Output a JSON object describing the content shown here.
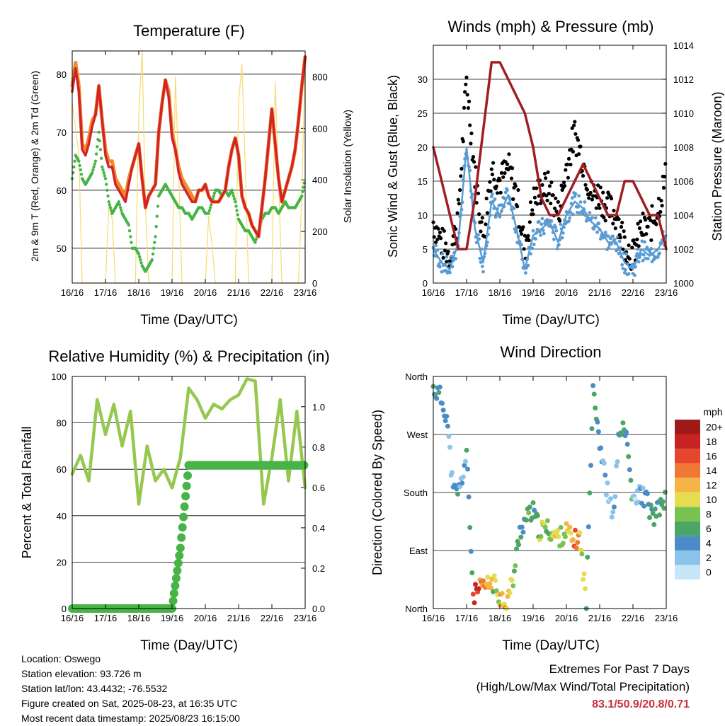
{
  "colors": {
    "temp_2m": "#d2232a",
    "temp_9m": "#f08c28",
    "dewpoint": "#46b446",
    "solar": "#f5dc6e",
    "wind": "#5a9bd2",
    "gust": "#000000",
    "pressure": "#a01e23",
    "rh": "#96c850",
    "precip": "#46b446",
    "extremes": "#c8323c"
  },
  "time_ticks": [
    "16/16",
    "17/16",
    "18/16",
    "19/16",
    "20/16",
    "21/16",
    "22/16",
    "23/16"
  ],
  "xlabel": "Time (Day/UTC)",
  "panels": {
    "temperature": {
      "title": "Temperature (F)",
      "ylabel_left": "2m & 9m T (Red, Orange) & 2m Td (Green)",
      "ylabel_right": "Solar Insolation (Yellow)",
      "yticks_left": [
        "50",
        "60",
        "70",
        "80"
      ],
      "yticks_right": [
        "0",
        "200",
        "400",
        "600",
        "800"
      ]
    },
    "winds": {
      "title": "Winds (mph) & Pressure (mb)",
      "ylabel_left": "Sonic Wind & Gust (Blue, Black)",
      "ylabel_right": "Station Pressure (Maroon)",
      "yticks_left": [
        "0",
        "5",
        "10",
        "15",
        "20",
        "25",
        "30"
      ],
      "yticks_right": [
        "1000",
        "1002",
        "1004",
        "1006",
        "1008",
        "1010",
        "1012",
        "1014"
      ]
    },
    "humidity": {
      "title": "Relative Humidity (%) & Precipitation (in)",
      "ylabel_left": "Percent & Total Rainfall",
      "yticks_left": [
        "0",
        "20",
        "40",
        "60",
        "80",
        "100"
      ],
      "yticks_right": [
        "0.0",
        "0.2",
        "0.4",
        "0.6",
        "0.8",
        "1.0"
      ]
    },
    "direction": {
      "title": "Wind Direction",
      "ylabel_left": "Direction (Colored By Speed)",
      "yticks_left": [
        "North",
        "East",
        "South",
        "West",
        "North"
      ],
      "legend_title": "mph",
      "legend_labels": [
        "0",
        "2",
        "4",
        "6",
        "8",
        "10",
        "12",
        "14",
        "16",
        "18",
        "20+"
      ],
      "legend_colors": [
        "#c8e6fa",
        "#8cc3eb",
        "#4b8cc8",
        "#4ba564",
        "#78c350",
        "#e6dc50",
        "#f5b446",
        "#f07832",
        "#e6462d",
        "#c82323",
        "#a01919"
      ]
    }
  },
  "chart_data": [
    {
      "type": "line",
      "title": "Temperature (F)",
      "xlabel": "Time (Day/UTC)",
      "ylabel": "2m & 9m T (Red, Orange) & 2m Td (Green)",
      "y2label": "Solar Insolation (Yellow)",
      "ylim": [
        44,
        84
      ],
      "y2lim": [
        0,
        900
      ],
      "x_days": [
        0,
        0.1,
        0.2,
        0.3,
        0.4,
        0.5,
        0.6,
        0.7,
        0.8,
        0.9,
        1.0,
        1.1,
        1.2,
        1.3,
        1.4,
        1.5,
        1.6,
        1.7,
        1.8,
        1.9,
        2.0,
        2.1,
        2.2,
        2.3,
        2.4,
        2.5,
        2.6,
        2.7,
        2.8,
        2.9,
        3.0,
        3.1,
        3.2,
        3.3,
        3.4,
        3.5,
        3.6,
        3.7,
        3.8,
        3.9,
        4.0,
        4.1,
        4.2,
        4.3,
        4.4,
        4.5,
        4.6,
        4.7,
        4.8,
        4.9,
        5.0,
        5.1,
        5.2,
        5.3,
        5.4,
        5.5,
        5.6,
        5.7,
        5.8,
        5.9,
        6.0,
        6.1,
        6.2,
        6.3,
        6.4,
        6.5,
        6.6,
        6.7,
        6.8,
        6.9,
        7.0
      ],
      "series": [
        {
          "name": "2m T",
          "values": [
            77,
            81,
            77,
            67,
            66,
            68,
            71,
            73,
            78,
            72,
            66,
            64,
            64,
            61,
            60,
            59,
            58,
            61,
            64,
            66,
            68,
            62,
            57,
            59,
            60,
            61,
            70,
            75,
            79,
            76,
            69,
            67,
            63,
            61,
            60,
            59,
            58,
            58,
            60,
            60,
            61,
            59,
            58,
            58,
            58,
            59,
            60,
            64,
            67,
            69,
            66,
            59,
            57,
            56,
            54,
            53,
            52,
            57,
            62,
            68,
            74,
            68,
            62,
            58,
            60,
            62,
            64,
            67,
            72,
            78,
            83
          ]
        },
        {
          "name": "9m T",
          "values": [
            78,
            82,
            78,
            68,
            67,
            69,
            72,
            73,
            78,
            72,
            67,
            65,
            65,
            62,
            61,
            60,
            59,
            62,
            64,
            66,
            68,
            62,
            57,
            59,
            60,
            61,
            70,
            75,
            79,
            77,
            70,
            67,
            64,
            62,
            61,
            60,
            59,
            58,
            60,
            60,
            61,
            59,
            58,
            58,
            58,
            59,
            60,
            64,
            67,
            69,
            66,
            59,
            57,
            56,
            54,
            53,
            52,
            57,
            62,
            68,
            74,
            68,
            62,
            58,
            60,
            62,
            64,
            67,
            72,
            78,
            83
          ]
        },
        {
          "name": "2m Td",
          "values": [
            62,
            66,
            65,
            62,
            61,
            62,
            63,
            65,
            70,
            64,
            62,
            58,
            56,
            57,
            58,
            56,
            55,
            54,
            50,
            50,
            49,
            47,
            46,
            47,
            48,
            52,
            59,
            60,
            61,
            60,
            59,
            58,
            57,
            57,
            56,
            56,
            55,
            56,
            57,
            57,
            56,
            56,
            58,
            60,
            60,
            59,
            60,
            59,
            60,
            58,
            55,
            54,
            53,
            53,
            52,
            51,
            53,
            55,
            56,
            56,
            57,
            57,
            56,
            57,
            58,
            57,
            57,
            57,
            58,
            59,
            62
          ]
        }
      ],
      "solar_x": [
        0,
        0.2,
        0.3,
        0.4,
        0.5,
        0.6,
        0.7,
        0.8,
        0.9,
        1.0,
        1.1,
        1.2,
        1.3,
        1.4,
        1.5,
        1.6,
        1.7,
        1.8,
        1.9,
        2.0,
        2.1,
        2.2,
        2.3,
        2.4,
        2.5,
        2.6,
        2.7,
        2.8,
        2.9,
        3.0,
        3.1,
        3.2,
        3.3,
        3.4,
        3.5,
        3.6,
        3.7,
        3.8,
        3.9,
        4.0,
        4.1,
        4.2,
        4.3,
        4.4,
        4.5,
        4.6,
        4.7,
        4.8,
        4.9,
        5.0,
        5.1,
        5.2,
        5.3,
        5.4,
        5.5,
        5.6,
        5.7,
        5.8,
        5.9,
        6.0,
        6.1,
        6.2,
        6.3,
        6.4,
        6.5,
        6.6,
        6.7,
        6.8,
        6.9,
        7.0
      ],
      "solar": [
        700,
        500,
        0,
        0,
        0,
        0,
        0,
        0,
        0,
        0,
        300,
        250,
        0,
        0,
        0,
        0,
        0,
        0,
        0,
        650,
        900,
        300,
        0,
        0,
        0,
        0,
        0,
        0,
        0,
        0,
        800,
        420,
        0,
        0,
        0,
        0,
        0,
        0,
        0,
        0,
        260,
        150,
        0,
        0,
        0,
        0,
        0,
        0,
        0,
        700,
        850,
        450,
        0,
        0,
        0,
        0,
        0,
        0,
        0,
        0,
        780,
        400,
        0,
        0,
        0,
        0,
        0,
        0,
        350,
        880
      ]
    },
    {
      "type": "scatter",
      "title": "Winds (mph) & Pressure (mb)",
      "xlabel": "Time (Day/UTC)",
      "ylabel": "Sonic Wind & Gust (Blue, Black)",
      "y2label": "Station Pressure (Maroon)",
      "ylim": [
        0,
        35
      ],
      "y2lim": [
        1000,
        1014
      ],
      "x_days": [
        0,
        0.25,
        0.5,
        0.75,
        1.0,
        1.25,
        1.5,
        1.75,
        2.0,
        2.25,
        2.5,
        2.75,
        3.0,
        3.25,
        3.5,
        3.75,
        4.0,
        4.25,
        4.5,
        4.75,
        5.0,
        5.25,
        5.5,
        5.75,
        6.0,
        6.25,
        6.5,
        6.75,
        7.0
      ],
      "series": [
        {
          "name": "Sonic Wind",
          "values": [
            5,
            3,
            2,
            6,
            20,
            8,
            3,
            12,
            10,
            13,
            8,
            2,
            7,
            8,
            9,
            6,
            10,
            12,
            11,
            9,
            8,
            6,
            6,
            3,
            2,
            5,
            4,
            5,
            7
          ]
        },
        {
          "name": "Gust",
          "values": [
            9,
            6,
            4,
            10,
            30,
            16,
            7,
            17,
            15,
            17,
            13,
            5,
            12,
            14,
            14,
            10,
            17,
            22,
            18,
            13,
            13,
            11,
            10,
            6,
            4,
            8,
            8,
            11,
            16
          ]
        },
        {
          "name": "Station Pressure",
          "values": [
            1008,
            1006,
            1004,
            1002,
            1002,
            1005,
            1009,
            1013,
            1013,
            1012,
            1011,
            1010,
            1008,
            1005,
            1004,
            1004,
            1005,
            1006,
            1007,
            1006,
            1005,
            1004,
            1004,
            1006,
            1006,
            1005,
            1004,
            1004,
            1002
          ]
        }
      ]
    },
    {
      "type": "line",
      "title": "Relative Humidity (%) & Precipitation (in)",
      "xlabel": "Time (Day/UTC)",
      "ylabel": "Percent & Total Rainfall",
      "ylim": [
        0,
        100
      ],
      "y2lim": [
        0,
        1.15
      ],
      "x_days": [
        0,
        0.25,
        0.5,
        0.75,
        1.0,
        1.25,
        1.5,
        1.75,
        2.0,
        2.25,
        2.5,
        2.75,
        3.0,
        3.25,
        3.5,
        3.75,
        4.0,
        4.25,
        4.5,
        4.75,
        5.0,
        5.25,
        5.5,
        5.75,
        6.0,
        6.25,
        6.5,
        6.75,
        7.0
      ],
      "series": [
        {
          "name": "Relative Humidity",
          "values": [
            58,
            66,
            55,
            90,
            75,
            88,
            70,
            85,
            45,
            70,
            55,
            60,
            52,
            65,
            95,
            90,
            82,
            88,
            86,
            90,
            92,
            99,
            98,
            45,
            65,
            90,
            55,
            85,
            52
          ]
        },
        {
          "name": "Total Rainfall",
          "values": [
            0,
            0,
            0,
            0,
            0,
            0,
            0,
            0,
            0,
            0,
            0,
            0,
            0,
            0.3,
            0.71,
            0.71,
            0.71,
            0.71,
            0.71,
            0.71,
            0.71,
            0.71,
            0.71,
            0.71,
            0.71,
            0.71,
            0.71,
            0.71,
            0.71
          ]
        }
      ]
    },
    {
      "type": "scatter",
      "title": "Wind Direction",
      "xlabel": "Time (Day/UTC)",
      "ylabel": "Direction (Colored By Speed)",
      "ylim": [
        0,
        360
      ],
      "x_days": [
        0,
        0.2,
        0.4,
        0.6,
        0.8,
        1.0,
        1.2,
        1.4,
        1.6,
        1.8,
        2.0,
        2.2,
        2.4,
        2.6,
        2.8,
        3.0,
        3.2,
        3.4,
        3.6,
        3.8,
        4.0,
        4.2,
        4.4,
        4.6,
        4.8,
        5.0,
        5.2,
        5.4,
        5.6,
        5.8,
        6.0,
        6.2,
        6.4,
        6.6,
        6.8,
        7.0
      ],
      "direction": [
        340,
        330,
        300,
        180,
        185,
        240,
        20,
        30,
        35,
        40,
        20,
        10,
        45,
        120,
        140,
        150,
        120,
        125,
        115,
        110,
        120,
        105,
        110,
        10,
        350,
        260,
        190,
        140,
        280,
        270,
        160,
        180,
        170,
        140,
        155,
        175
      ],
      "speed": [
        5,
        4,
        3,
        4,
        3,
        5,
        18,
        14,
        12,
        8,
        12,
        11,
        6,
        5,
        7,
        6,
        8,
        8,
        10,
        9,
        11,
        14,
        10,
        6,
        5,
        3,
        2,
        3,
        5,
        6,
        2,
        3,
        4,
        5,
        6,
        7
      ]
    }
  ],
  "info": {
    "location": "Location: Oswego",
    "elevation": "Station elevation: 93.726 m",
    "latlon": "Station lat/lon: 43.4432; -76.5532",
    "created": "Figure created on Sat, 2025-08-23, at 16:35 UTC",
    "recent": "Most recent data timestamp: 2025/08/23 16:15:00"
  },
  "extremes": {
    "title": "Extremes For Past 7 Days",
    "subtitle": "(High/Low/Max Wind/Total Precipitation)",
    "values": "83.1/50.9/20.8/0.71"
  }
}
